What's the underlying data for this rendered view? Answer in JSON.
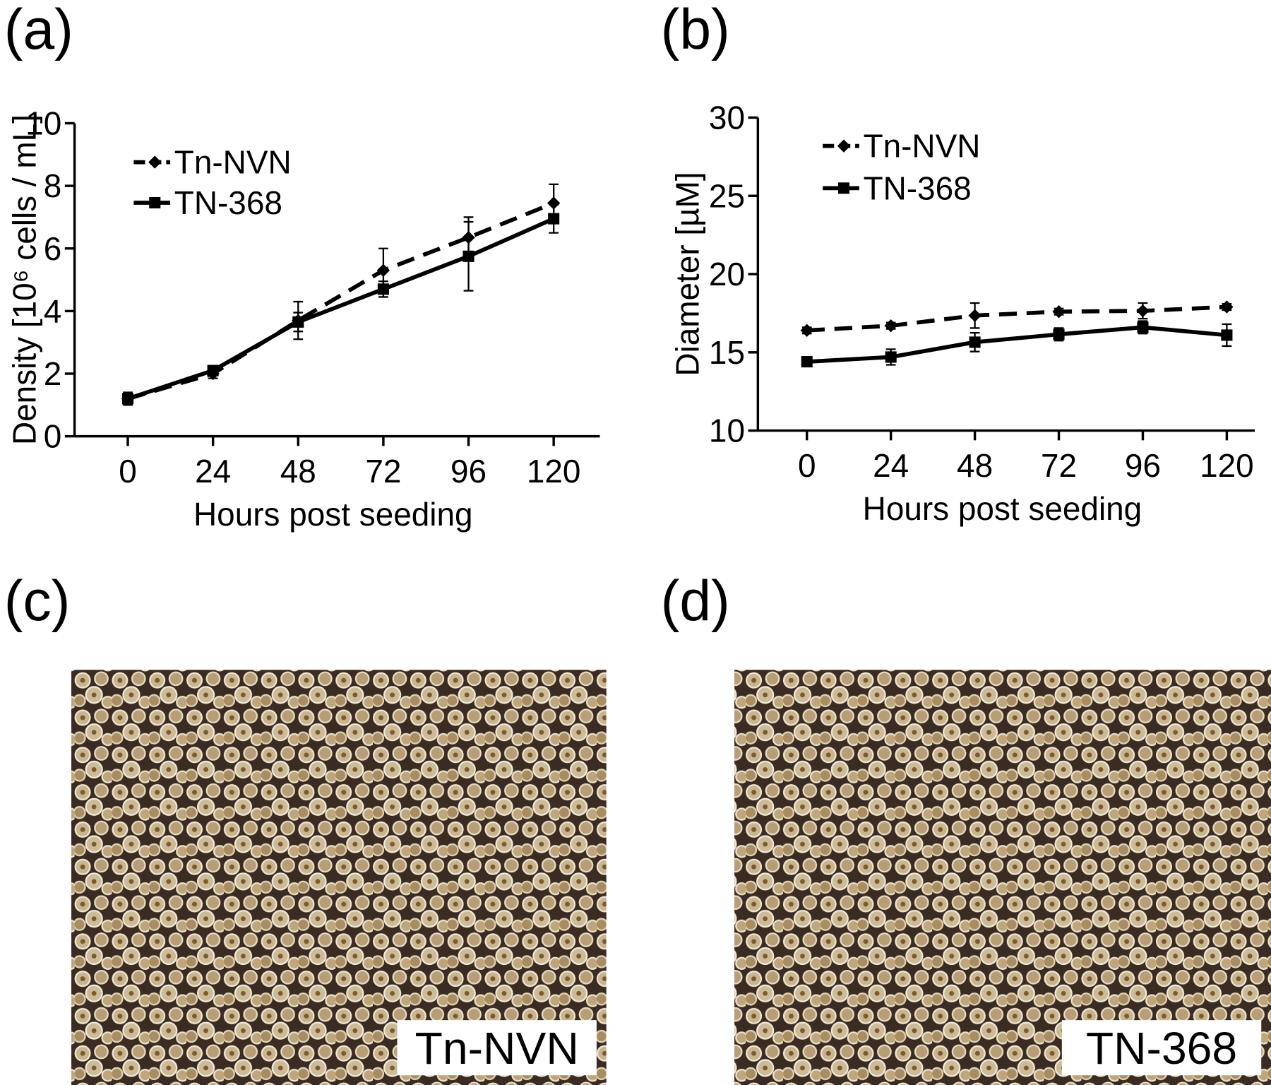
{
  "chart_data": [
    {
      "type": "line",
      "panel": "(a)",
      "x_label": "Hours post seeding",
      "y_label": "Density [10⁶ cells / mL]",
      "x": [
        0,
        24,
        48,
        72,
        96,
        120
      ],
      "xlim": [
        -15,
        133
      ],
      "xticks": [
        0,
        24,
        48,
        72,
        96,
        120
      ],
      "ylim": [
        0,
        10
      ],
      "yticks": [
        0,
        2,
        4,
        6,
        8,
        10
      ],
      "series": [
        {
          "name": "Tn-NVN",
          "color": "#000000",
          "line_style": "dashed",
          "marker": "diamond",
          "values": [
            1.2,
            2.0,
            3.7,
            5.3,
            6.35,
            7.45
          ],
          "errors": [
            0.2,
            0.15,
            0.6,
            0.7,
            0.65,
            0.6
          ]
        },
        {
          "name": "TN-368",
          "color": "#000000",
          "line_style": "solid",
          "marker": "square",
          "values": [
            1.2,
            2.1,
            3.65,
            4.7,
            5.75,
            6.95
          ],
          "errors": [
            0.15,
            0.15,
            0.3,
            0.25,
            1.1,
            0.45
          ]
        }
      ]
    },
    {
      "type": "line",
      "panel": "(b)",
      "x_label": "Hours post seeding",
      "y_label": "Diameter [µM]",
      "x": [
        0,
        24,
        48,
        72,
        96,
        120
      ],
      "xlim": [
        -14,
        128
      ],
      "xticks": [
        0,
        24,
        48,
        72,
        96,
        120
      ],
      "ylim": [
        10,
        30
      ],
      "yticks": [
        10,
        15,
        20,
        25,
        30
      ],
      "series": [
        {
          "name": "Tn-NVN",
          "color": "#000000",
          "line_style": "dashed",
          "marker": "diamond",
          "values": [
            16.4,
            16.7,
            17.35,
            17.6,
            17.65,
            17.9
          ],
          "errors": [
            0.2,
            0.2,
            0.8,
            0.2,
            0.5,
            0.2
          ]
        },
        {
          "name": "TN-368",
          "color": "#000000",
          "line_style": "solid",
          "marker": "square",
          "values": [
            14.4,
            14.7,
            15.65,
            16.15,
            16.6,
            16.1
          ],
          "errors": [
            0.3,
            0.5,
            0.6,
            0.4,
            0.4,
            0.7
          ]
        }
      ]
    }
  ],
  "images": [
    {
      "panel": "(c)",
      "caption": "Tn-NVN"
    },
    {
      "panel": "(d)",
      "caption": "TN-368"
    }
  ]
}
